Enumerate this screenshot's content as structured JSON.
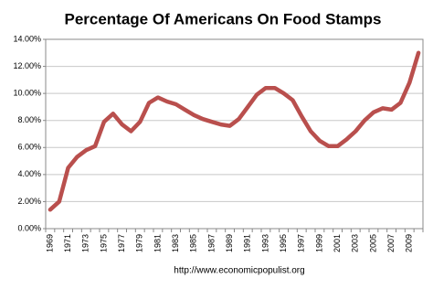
{
  "chart_data": {
    "type": "line",
    "title": "Percentage Of Americans On Food Stamps",
    "footer": "http://www.economicpopulist.org",
    "categories": [
      "1969",
      null,
      "1971",
      null,
      "1973",
      null,
      "1975",
      null,
      "1977",
      null,
      "1979",
      null,
      "1981",
      null,
      "1983",
      null,
      "1985",
      null,
      "1987",
      null,
      "1989",
      null,
      "1991",
      null,
      "1993",
      null,
      "1995",
      null,
      "1997",
      null,
      "1999",
      null,
      "2001",
      null,
      "2003",
      null,
      "2005",
      null,
      "2007",
      null,
      "2009",
      null
    ],
    "values": [
      1.4,
      2.0,
      4.5,
      5.3,
      5.8,
      6.1,
      7.9,
      8.5,
      7.7,
      7.2,
      7.9,
      9.3,
      9.7,
      9.4,
      9.2,
      8.8,
      8.4,
      8.1,
      7.9,
      7.7,
      7.6,
      8.1,
      9.0,
      9.9,
      10.4,
      10.4,
      10.0,
      9.5,
      8.3,
      7.2,
      6.5,
      6.1,
      6.1,
      6.6,
      7.2,
      8.0,
      8.6,
      8.9,
      8.8,
      9.3,
      10.8,
      13.0
    ],
    "color": "#b94f4d",
    "ylim": [
      0,
      14
    ],
    "yticks": [
      {
        "value": 0,
        "label": "0.00%"
      },
      {
        "value": 2,
        "label": "2.00%"
      },
      {
        "value": 4,
        "label": "4.00%"
      },
      {
        "value": 6,
        "label": "6.00%"
      },
      {
        "value": 8,
        "label": "8.00%"
      },
      {
        "value": 10,
        "label": "10.00%"
      },
      {
        "value": 12,
        "label": "12.00%"
      },
      {
        "value": 14,
        "label": "14.00%"
      }
    ],
    "grid": true
  }
}
